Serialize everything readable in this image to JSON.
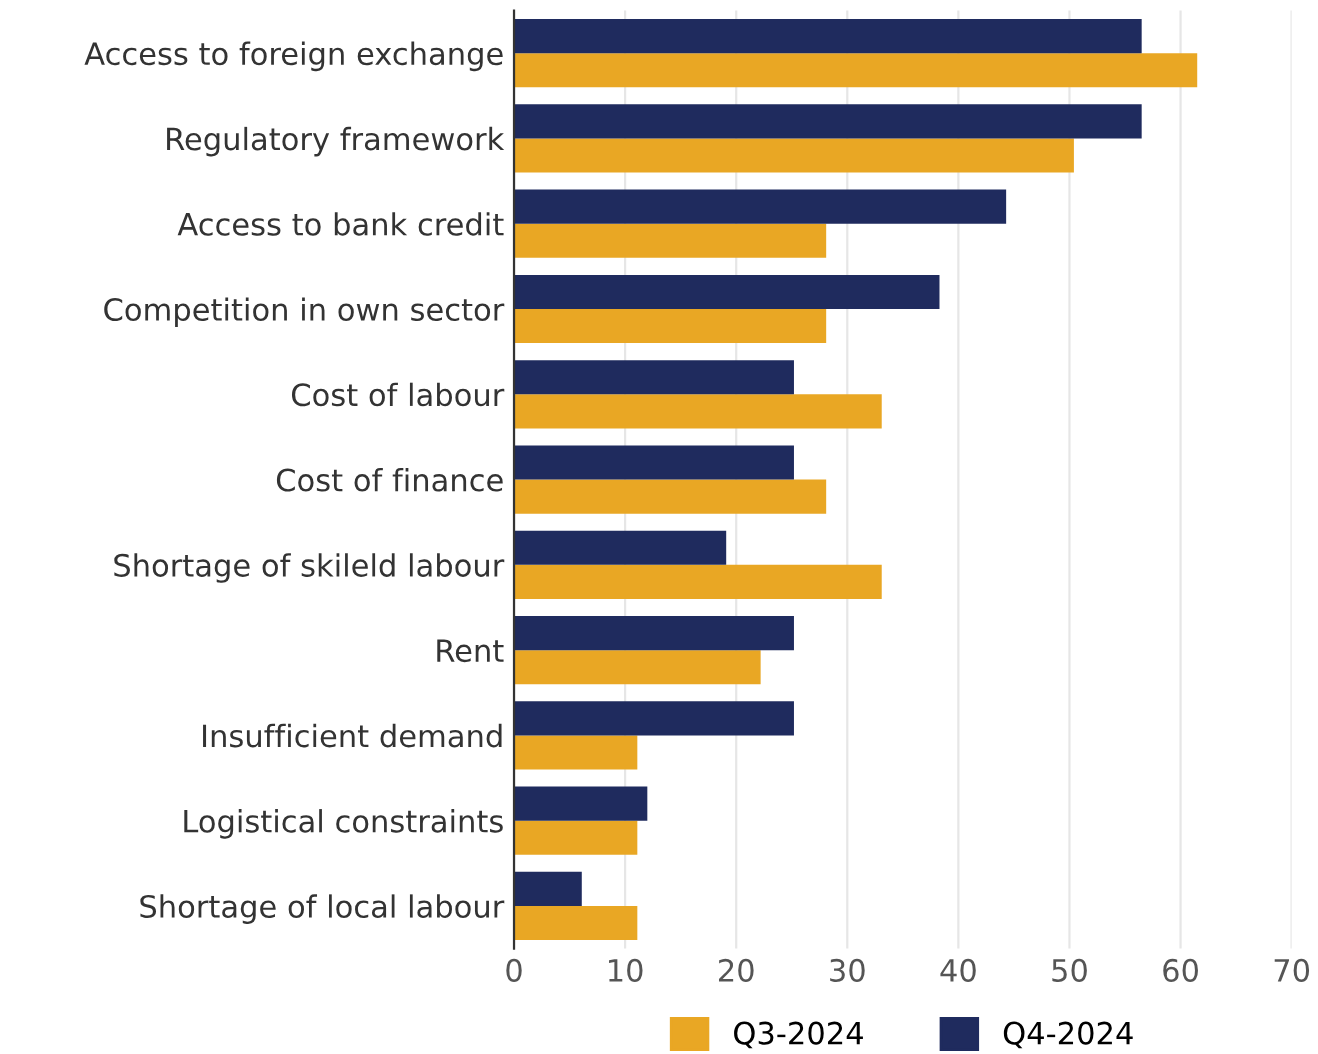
{
  "chart_data": {
    "type": "bar",
    "orientation": "horizontal",
    "categories": [
      "Access to foreign exchange",
      "Regulatory framework",
      "Access to bank credit",
      "Competition in own sector",
      "Cost of labour",
      "Cost of finance",
      "Shortage of skileld labour",
      "Rent",
      "Insufficient demand",
      "Logistical constraints",
      "Shortage of local labour"
    ],
    "series": [
      {
        "name": "Q3-2024",
        "color": "#e9a724",
        "values": [
          61.5,
          50.4,
          28.1,
          28.1,
          33.1,
          28.1,
          33.1,
          22.2,
          11.1,
          11.1,
          11.1
        ]
      },
      {
        "name": "Q4-2024",
        "color": "#1f2b5e",
        "values": [
          56.5,
          56.5,
          44.3,
          38.3,
          25.2,
          25.2,
          19.1,
          25.2,
          25.2,
          12.0,
          6.1
        ]
      }
    ],
    "xlim": [
      0,
      70
    ],
    "xticks": [
      0,
      10,
      20,
      30,
      40,
      50,
      60,
      70
    ],
    "grid": "x",
    "legend": "bottom"
  }
}
